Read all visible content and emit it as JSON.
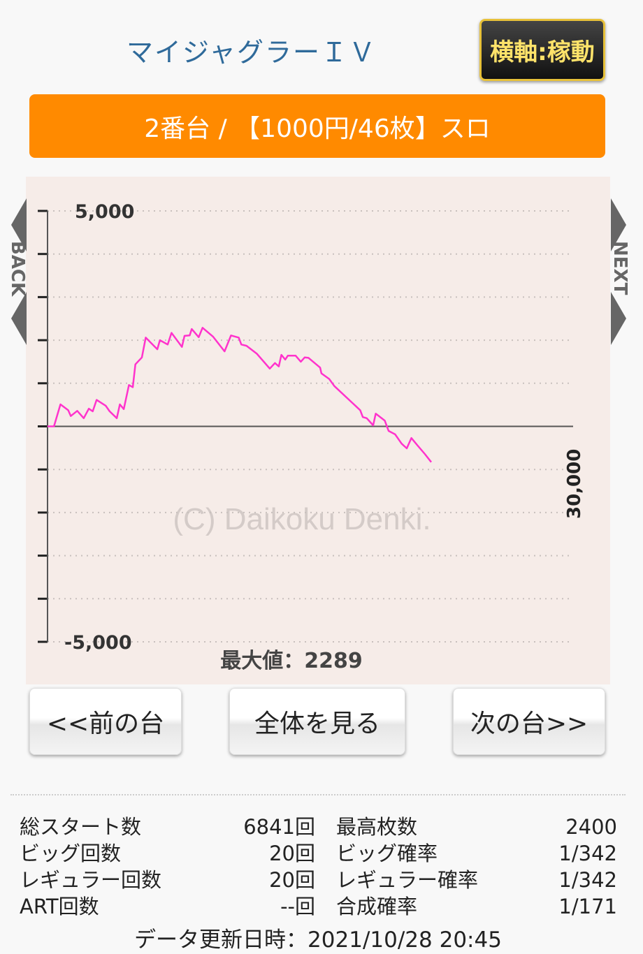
{
  "header": {
    "title": "マイジャグラーＩＶ",
    "axis_toggle_label": "横軸:稼動"
  },
  "banner": {
    "text": "2番台 / 【1000円/46枚】スロ"
  },
  "side_nav": {
    "back_label": "BACK",
    "next_label": "NEXT"
  },
  "chart_data": {
    "type": "line",
    "ylim": [
      -5000,
      5000
    ],
    "ytick_labels": [
      "5,000",
      "-5,000"
    ],
    "yticks": [
      -5000,
      -4000,
      -3000,
      -2000,
      -1000,
      0,
      1000,
      2000,
      3000,
      4000,
      5000
    ],
    "grid": true,
    "xlim": [
      0,
      9370
    ],
    "x_label": "30,000",
    "watermark": "(C) Daikoku Denki.",
    "max_label": "最大値：2289",
    "line_color": "#ff33cc",
    "series": [
      {
        "x": [
          0,
          115,
          230,
          369,
          415,
          530,
          645,
          737,
          806,
          875,
          1037,
          1106,
          1235,
          1290,
          1359,
          1451,
          1520,
          1566,
          1682,
          1751,
          1958,
          2004,
          2142,
          2211,
          2396,
          2442,
          2534,
          2571,
          2695,
          2764,
          2949,
          3156,
          3271,
          3409,
          3455,
          3547,
          3732,
          3962,
          4054,
          4123,
          4169,
          4238,
          4284,
          4423,
          4515,
          4584,
          4653,
          4860,
          4883,
          5022,
          5114,
          5575,
          5621,
          5690,
          5805,
          5851,
          6012,
          6081,
          6196,
          6312,
          6404,
          6487,
          6588,
          6726,
          6841
        ],
        "y": [
          0,
          0,
          510,
          375,
          240,
          360,
          190,
          410,
          350,
          615,
          480,
          350,
          190,
          510,
          400,
          960,
          910,
          1440,
          1600,
          2060,
          1790,
          2000,
          1900,
          2170,
          1845,
          2100,
          2110,
          2260,
          2070,
          2289,
          2085,
          1740,
          2110,
          2060,
          1900,
          1870,
          1685,
          1340,
          1470,
          1390,
          1660,
          1550,
          1640,
          1640,
          1500,
          1600,
          1590,
          1365,
          1230,
          1100,
          935,
          375,
          215,
          190,
          25,
          295,
          135,
          -105,
          -185,
          -400,
          -510,
          -270,
          -430,
          -640,
          -830
        ]
      }
    ]
  },
  "nav": {
    "prev": "<<前の台",
    "all": "全体を見る",
    "next": "次の台>>"
  },
  "stats": [
    [
      "総スタート数",
      "6841回",
      "最高枚数",
      "2400"
    ],
    [
      "ビッグ回数",
      "20回",
      "ビッグ確率",
      "1/342"
    ],
    [
      "レギュラー回数",
      "20回",
      "レギュラー確率",
      "1/342"
    ],
    [
      "ART回数",
      "--回",
      "合成確率",
      "1/171"
    ]
  ],
  "footer": {
    "updated": "データ更新日時：2021/10/28 20:45"
  }
}
